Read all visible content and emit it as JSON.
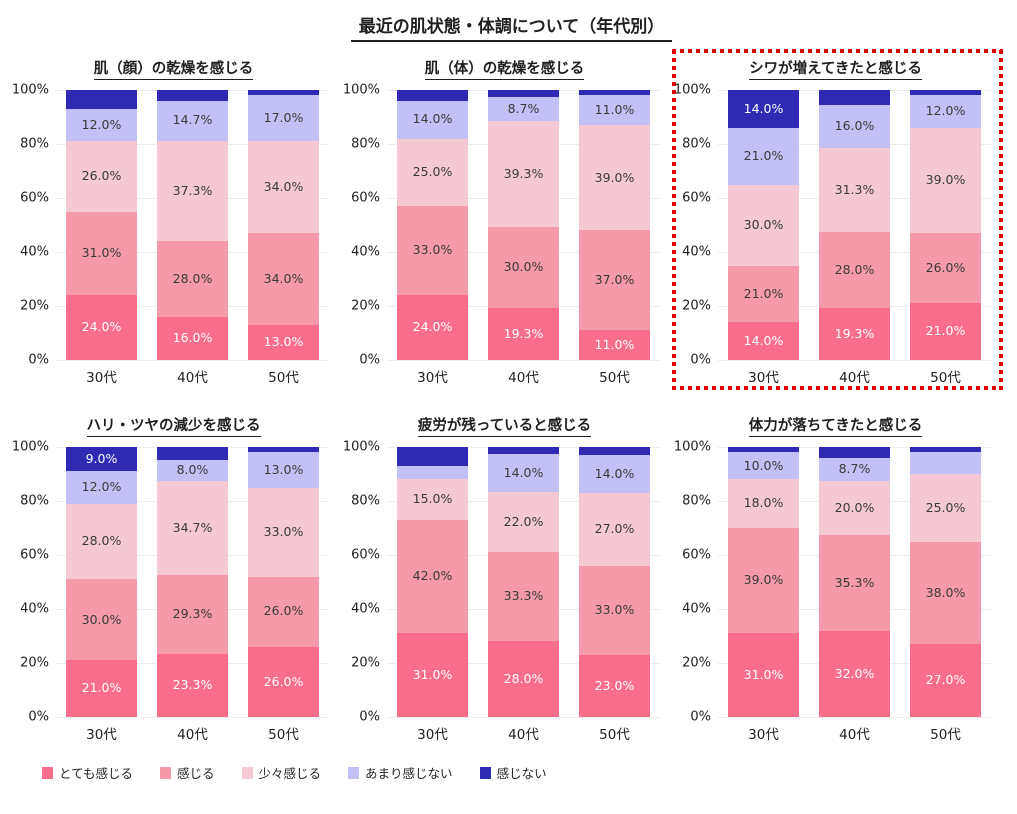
{
  "title": "最近の肌状態・体調について（年代別）",
  "highlight_color": "#E10000",
  "axis": {
    "y_ticks": [
      "100%",
      "80%",
      "60%",
      "40%",
      "20%",
      "0%"
    ],
    "categories": [
      "30代",
      "40代",
      "50代"
    ],
    "ylim": [
      0,
      100
    ],
    "grid": "faint horizontal at 20% steps"
  },
  "legend": {
    "position": "bottom-left",
    "items": [
      {
        "label": "とても感じる",
        "color": "#FA6D8B",
        "label_color": "#ffffff"
      },
      {
        "label": "感じる",
        "color": "#F59AAB",
        "label_color": "#3a3a3a"
      },
      {
        "label": "少々感じる",
        "color": "#F5C9D3",
        "label_color": "#3a3a3a"
      },
      {
        "label": "あまり感じない",
        "color": "#C3C0F5",
        "label_color": "#3a3a3a"
      },
      {
        "label": "感じない",
        "color": "#2F29B3",
        "label_color": "#ffffff"
      }
    ]
  },
  "chart_data": [
    {
      "type": "bar",
      "stacked": true,
      "percent": true,
      "highlighted": false,
      "title": "肌（顔）の乾燥を感じる",
      "categories": [
        "30代",
        "40代",
        "50代"
      ],
      "series": [
        {
          "name": "とても感じる",
          "values": [
            24.0,
            16.0,
            13.0
          ],
          "labels": [
            "24.0%",
            "16.0%",
            "13.0%"
          ]
        },
        {
          "name": "感じる",
          "values": [
            31.0,
            28.0,
            34.0
          ],
          "labels": [
            "31.0%",
            "28.0%",
            "34.0%"
          ]
        },
        {
          "name": "少々感じる",
          "values": [
            26.0,
            37.3,
            34.0
          ],
          "labels": [
            "26.0%",
            "37.3%",
            "34.0%"
          ]
        },
        {
          "name": "あまり感じない",
          "values": [
            12.0,
            14.7,
            17.0
          ],
          "labels": [
            "12.0%",
            "14.7%",
            "17.0%"
          ]
        },
        {
          "name": "感じない",
          "values": [
            7.0,
            4.0,
            2.0
          ],
          "labels": [
            "",
            "",
            ""
          ]
        }
      ]
    },
    {
      "type": "bar",
      "stacked": true,
      "percent": true,
      "highlighted": false,
      "title": "肌（体）の乾燥を感じる",
      "categories": [
        "30代",
        "40代",
        "50代"
      ],
      "series": [
        {
          "name": "とても感じる",
          "values": [
            24.0,
            19.3,
            11.0
          ],
          "labels": [
            "24.0%",
            "19.3%",
            "11.0%"
          ]
        },
        {
          "name": "感じる",
          "values": [
            33.0,
            30.0,
            37.0
          ],
          "labels": [
            "33.0%",
            "30.0%",
            "37.0%"
          ]
        },
        {
          "name": "少々感じる",
          "values": [
            25.0,
            39.3,
            39.0
          ],
          "labels": [
            "25.0%",
            "39.3%",
            "39.0%"
          ]
        },
        {
          "name": "あまり感じない",
          "values": [
            14.0,
            8.7,
            11.0
          ],
          "labels": [
            "14.0%",
            "8.7%",
            "11.0%"
          ]
        },
        {
          "name": "感じない",
          "values": [
            4.0,
            2.7,
            2.0
          ],
          "labels": [
            "",
            "",
            ""
          ]
        }
      ]
    },
    {
      "type": "bar",
      "stacked": true,
      "percent": true,
      "highlighted": true,
      "title": "シワが増えてきたと感じる",
      "categories": [
        "30代",
        "40代",
        "50代"
      ],
      "series": [
        {
          "name": "とても感じる",
          "values": [
            14.0,
            19.3,
            21.0
          ],
          "labels": [
            "14.0%",
            "19.3%",
            "21.0%"
          ]
        },
        {
          "name": "感じる",
          "values": [
            21.0,
            28.0,
            26.0
          ],
          "labels": [
            "21.0%",
            "28.0%",
            "26.0%"
          ]
        },
        {
          "name": "少々感じる",
          "values": [
            30.0,
            31.3,
            39.0
          ],
          "labels": [
            "30.0%",
            "31.3%",
            "39.0%"
          ]
        },
        {
          "name": "あまり感じない",
          "values": [
            21.0,
            16.0,
            12.0
          ],
          "labels": [
            "21.0%",
            "16.0%",
            "12.0%"
          ]
        },
        {
          "name": "感じない",
          "values": [
            14.0,
            5.4,
            2.0
          ],
          "labels": [
            "14.0%",
            "",
            ""
          ]
        }
      ]
    },
    {
      "type": "bar",
      "stacked": true,
      "percent": true,
      "highlighted": false,
      "title": "ハリ・ツヤの減少を感じる",
      "categories": [
        "30代",
        "40代",
        "50代"
      ],
      "series": [
        {
          "name": "とても感じる",
          "values": [
            21.0,
            23.3,
            26.0
          ],
          "labels": [
            "21.0%",
            "23.3%",
            "26.0%"
          ]
        },
        {
          "name": "感じる",
          "values": [
            30.0,
            29.3,
            26.0
          ],
          "labels": [
            "30.0%",
            "29.3%",
            "26.0%"
          ]
        },
        {
          "name": "少々感じる",
          "values": [
            28.0,
            34.7,
            33.0
          ],
          "labels": [
            "28.0%",
            "34.7%",
            "33.0%"
          ]
        },
        {
          "name": "あまり感じない",
          "values": [
            12.0,
            8.0,
            13.0
          ],
          "labels": [
            "12.0%",
            "8.0%",
            "13.0%"
          ]
        },
        {
          "name": "感じない",
          "values": [
            9.0,
            4.7,
            2.0
          ],
          "labels": [
            "9.0%",
            "",
            ""
          ]
        }
      ]
    },
    {
      "type": "bar",
      "stacked": true,
      "percent": true,
      "highlighted": false,
      "title": "疲労が残っていると感じる",
      "categories": [
        "30代",
        "40代",
        "50代"
      ],
      "series": [
        {
          "name": "とても感じる",
          "values": [
            31.0,
            28.0,
            23.0
          ],
          "labels": [
            "31.0%",
            "28.0%",
            "23.0%"
          ]
        },
        {
          "name": "感じる",
          "values": [
            42.0,
            33.3,
            33.0
          ],
          "labels": [
            "42.0%",
            "33.3%",
            "33.0%"
          ]
        },
        {
          "name": "少々感じる",
          "values": [
            15.0,
            22.0,
            27.0
          ],
          "labels": [
            "15.0%",
            "22.0%",
            "27.0%"
          ]
        },
        {
          "name": "あまり感じない",
          "values": [
            5.0,
            14.0,
            14.0
          ],
          "labels": [
            "",
            "14.0%",
            "14.0%"
          ]
        },
        {
          "name": "感じない",
          "values": [
            7.0,
            2.7,
            3.0
          ],
          "labels": [
            "",
            "",
            ""
          ]
        }
      ]
    },
    {
      "type": "bar",
      "stacked": true,
      "percent": true,
      "highlighted": false,
      "title": "体力が落ちてきたと感じる",
      "categories": [
        "30代",
        "40代",
        "50代"
      ],
      "series": [
        {
          "name": "とても感じる",
          "values": [
            31.0,
            32.0,
            27.0
          ],
          "labels": [
            "31.0%",
            "32.0%",
            "27.0%"
          ]
        },
        {
          "name": "感じる",
          "values": [
            39.0,
            35.3,
            38.0
          ],
          "labels": [
            "39.0%",
            "35.3%",
            "38.0%"
          ]
        },
        {
          "name": "少々感じる",
          "values": [
            18.0,
            20.0,
            25.0
          ],
          "labels": [
            "18.0%",
            "20.0%",
            "25.0%"
          ]
        },
        {
          "name": "あまり感じない",
          "values": [
            10.0,
            8.7,
            8.0
          ],
          "labels": [
            "10.0%",
            "8.7%",
            ""
          ]
        },
        {
          "name": "感じない",
          "values": [
            2.0,
            4.0,
            2.0
          ],
          "labels": [
            "",
            "",
            ""
          ]
        }
      ]
    }
  ]
}
